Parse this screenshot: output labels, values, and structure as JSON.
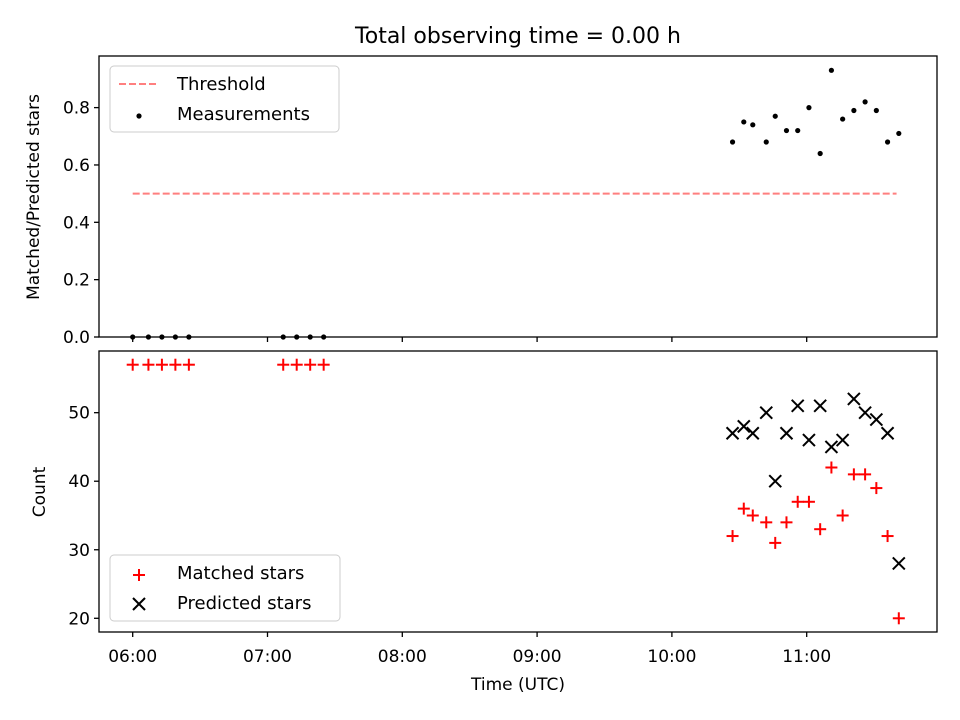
{
  "chart_data": [
    {
      "type": "scatter",
      "title": "Total observing time = 0.00 h",
      "xlabel": "",
      "ylabel": "Matched/Predicted stars",
      "ylim": [
        0,
        0.98
      ],
      "yticks": [
        0.0,
        0.2,
        0.4,
        0.6,
        0.8
      ],
      "ytick_labels": [
        "0.0",
        "0.2",
        "0.4",
        "0.6",
        "0.8"
      ],
      "legend_location": "upper left",
      "threshold": {
        "name": "Threshold",
        "color": "#ff7f7f",
        "style": "dashed",
        "y": 0.5,
        "x": [
          "06:00",
          "11:40"
        ]
      },
      "series": [
        {
          "name": "Measurements",
          "marker": "dot",
          "color": "#000000",
          "x": [
            "06:00",
            "06:07",
            "06:13",
            "06:19",
            "06:25",
            "07:07",
            "07:13",
            "07:19",
            "07:25",
            "10:27",
            "10:32",
            "10:36",
            "10:42",
            "10:46",
            "10:51",
            "10:56",
            "11:01",
            "11:06",
            "11:11",
            "11:16",
            "11:21",
            "11:26",
            "11:31",
            "11:36",
            "11:41"
          ],
          "y": [
            0,
            0,
            0,
            0,
            0,
            0,
            0,
            0,
            0,
            0.68,
            0.75,
            0.74,
            0.68,
            0.77,
            0.72,
            0.72,
            0.8,
            0.64,
            0.93,
            0.76,
            0.79,
            0.82,
            0.79,
            0.68,
            0.71
          ]
        }
      ]
    },
    {
      "type": "scatter",
      "title": "",
      "xlabel": "Time (UTC)",
      "ylabel": "Count",
      "ylim": [
        18,
        59
      ],
      "yticks": [
        20,
        30,
        40,
        50
      ],
      "ytick_labels": [
        "20",
        "30",
        "40",
        "50"
      ],
      "xlim": [
        "05:45",
        "11:58"
      ],
      "xticks": [
        "06:00",
        "07:00",
        "08:00",
        "09:00",
        "10:00",
        "11:00"
      ],
      "xtick_labels": [
        "06:00",
        "07:00",
        "08:00",
        "09:00",
        "10:00",
        "11:00"
      ],
      "legend_location": "lower left",
      "series": [
        {
          "name": "Matched stars",
          "marker": "plus",
          "color": "#ff0000",
          "x": [
            "06:00",
            "06:07",
            "06:13",
            "06:19",
            "06:25",
            "07:07",
            "07:13",
            "07:19",
            "07:25",
            "10:27",
            "10:32",
            "10:36",
            "10:42",
            "10:46",
            "10:51",
            "10:56",
            "11:01",
            "11:06",
            "11:11",
            "11:16",
            "11:21",
            "11:26",
            "11:31",
            "11:36",
            "11:41"
          ],
          "y": [
            57,
            57,
            57,
            57,
            57,
            57,
            57,
            57,
            57,
            32,
            36,
            35,
            34,
            31,
            34,
            37,
            37,
            33,
            42,
            35,
            41,
            41,
            39,
            32,
            20
          ]
        },
        {
          "name": "Predicted stars",
          "marker": "x",
          "color": "#000000",
          "x": [
            "10:27",
            "10:32",
            "10:36",
            "10:42",
            "10:46",
            "10:51",
            "10:56",
            "11:01",
            "11:06",
            "11:11",
            "11:16",
            "11:21",
            "11:26",
            "11:31",
            "11:36",
            "11:41"
          ],
          "y": [
            47,
            48,
            47,
            50,
            40,
            47,
            51,
            46,
            51,
            45,
            46,
            52,
            50,
            49,
            47,
            28
          ]
        }
      ]
    }
  ]
}
